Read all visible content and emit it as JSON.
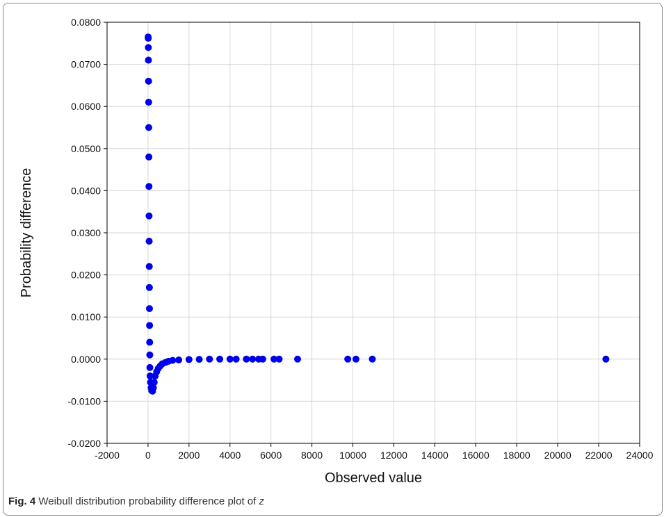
{
  "chart_data": {
    "type": "scatter",
    "title": "",
    "xlabel": "Observed value",
    "ylabel": "Probability difference",
    "xlim": [
      -2000,
      24000
    ],
    "ylim": [
      -0.02,
      0.08
    ],
    "grid": true,
    "legend": "none",
    "x_ticks": [
      "-2000",
      "0",
      "2000",
      "4000",
      "6000",
      "8000",
      "10000",
      "12000",
      "14000",
      "16000",
      "18000",
      "20000",
      "22000",
      "24000"
    ],
    "y_ticks": [
      "-0.0200",
      "-0.0100",
      "0.0000",
      "0.0100",
      "0.0200",
      "0.0300",
      "0.0400",
      "0.0500",
      "0.0600",
      "0.0700",
      "0.0800"
    ],
    "series": [
      {
        "color": "#0000ee",
        "points": [
          [
            5,
            0.0765
          ],
          [
            10,
            0.0762
          ],
          [
            15,
            0.074
          ],
          [
            20,
            0.071
          ],
          [
            25,
            0.066
          ],
          [
            30,
            0.061
          ],
          [
            35,
            0.055
          ],
          [
            40,
            0.048
          ],
          [
            45,
            0.041
          ],
          [
            50,
            0.034
          ],
          [
            55,
            0.028
          ],
          [
            60,
            0.022
          ],
          [
            65,
            0.017
          ],
          [
            70,
            0.012
          ],
          [
            75,
            0.008
          ],
          [
            80,
            0.004
          ],
          [
            85,
            0.001
          ],
          [
            90,
            -0.002
          ],
          [
            100,
            -0.004
          ],
          [
            120,
            -0.0055
          ],
          [
            150,
            -0.0068
          ],
          [
            180,
            -0.0075
          ],
          [
            220,
            -0.0076
          ],
          [
            260,
            -0.0068
          ],
          [
            300,
            -0.0055
          ],
          [
            350,
            -0.004
          ],
          [
            420,
            -0.003
          ],
          [
            500,
            -0.0022
          ],
          [
            600,
            -0.0016
          ],
          [
            700,
            -0.0011
          ],
          [
            850,
            -0.0008
          ],
          [
            1000,
            -0.0005
          ],
          [
            1200,
            -0.0003
          ],
          [
            1500,
            -0.0002
          ],
          [
            2000,
            -0.0001
          ],
          [
            2500,
            -5e-05
          ],
          [
            3000,
            0.0
          ],
          [
            3500,
            0.0
          ],
          [
            4000,
            0.0
          ],
          [
            4300,
            0.0
          ],
          [
            4800,
            0.0
          ],
          [
            5100,
            0.0
          ],
          [
            5400,
            0.0
          ],
          [
            5600,
            0.0
          ],
          [
            6150,
            0.0
          ],
          [
            6400,
            0.0
          ],
          [
            7300,
            0.0
          ],
          [
            9750,
            0.0
          ],
          [
            10150,
            0.0
          ],
          [
            10950,
            0.0
          ],
          [
            22350,
            0.0
          ]
        ]
      }
    ]
  },
  "caption": {
    "label": "Fig. 4",
    "text": "Weibull distribution probability difference plot of",
    "variable": "z"
  }
}
